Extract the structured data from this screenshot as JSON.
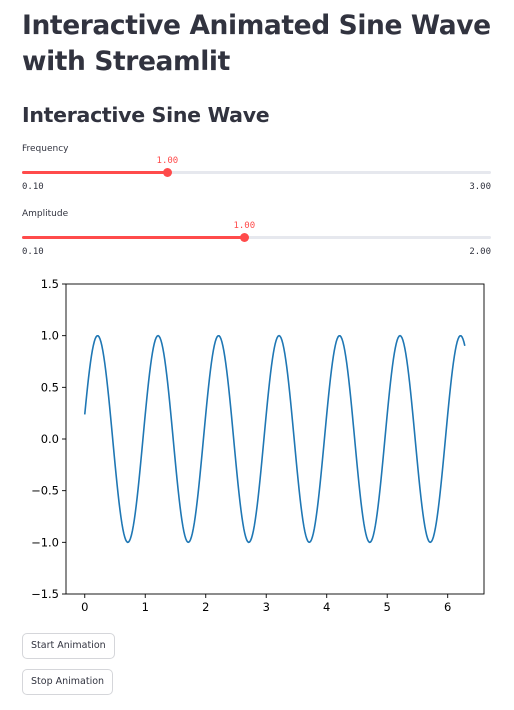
{
  "page": {
    "title": "Interactive Animated Sine Wave with Streamlit",
    "subtitle": "Interactive Sine Wave"
  },
  "sliders": [
    {
      "label": "Frequency",
      "value": "1.00",
      "min": "0.10",
      "max": "3.00",
      "fraction": 0.31
    },
    {
      "label": "Amplitude",
      "value": "1.00",
      "min": "0.10",
      "max": "2.00",
      "fraction": 0.474
    }
  ],
  "chart_data": {
    "type": "line",
    "title": "",
    "xlabel": "",
    "ylabel": "",
    "xlim": [
      -0.31,
      6.6
    ],
    "ylim": [
      -1.5,
      1.5
    ],
    "xticks": [
      0,
      1,
      2,
      3,
      4,
      5,
      6
    ],
    "xtick_labels": [
      "0",
      "1",
      "2",
      "3",
      "4",
      "5",
      "6"
    ],
    "yticks": [
      1.5,
      1.0,
      0.5,
      0.0,
      -0.5,
      -1.0,
      -1.5
    ],
    "ytick_labels": [
      "1.5",
      "1.0",
      "0.5",
      "0.0",
      "−0.5",
      "−1.0",
      "−1.5"
    ],
    "grid": false,
    "series": [
      {
        "function": "y = sin(2*pi*x + 0.24)",
        "x_range": [
          0,
          6.283
        ],
        "points": 400,
        "color": "#1f77b4"
      }
    ]
  },
  "buttons": {
    "start_label": "Start Animation",
    "stop_label": "Stop Animation"
  }
}
